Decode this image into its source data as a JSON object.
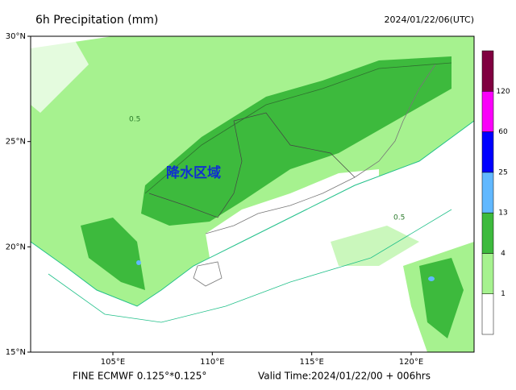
{
  "header": {
    "title": "6h Precipitation (mm)",
    "time": "2024/01/22/06(UTC)"
  },
  "map": {
    "annotation": "降水区域",
    "lat_ticks": [
      {
        "value": 30,
        "label": "30°N"
      },
      {
        "value": 25,
        "label": "25°N"
      },
      {
        "value": 20,
        "label": "20°N"
      },
      {
        "value": 15,
        "label": "15°N"
      }
    ],
    "lon_ticks": [
      {
        "value": 105,
        "label": "105°E"
      },
      {
        "value": 110,
        "label": "110°E"
      },
      {
        "value": 115,
        "label": "115°E"
      },
      {
        "value": 120,
        "label": "120°E"
      }
    ],
    "contour_label": "0.5"
  },
  "colorbar": {
    "colors": [
      "#ffffff",
      "#a6f28f",
      "#3dba3d",
      "#61b8ff",
      "#0000ff",
      "#fa00fa",
      "#800040"
    ],
    "labels": [
      "1",
      "4",
      "13",
      "25",
      "60",
      "120"
    ]
  },
  "footer": {
    "model": "FINE ECMWF 0.125°*0.125°",
    "valid": "Valid Time:2024/01/22/00 + 006hrs"
  }
}
